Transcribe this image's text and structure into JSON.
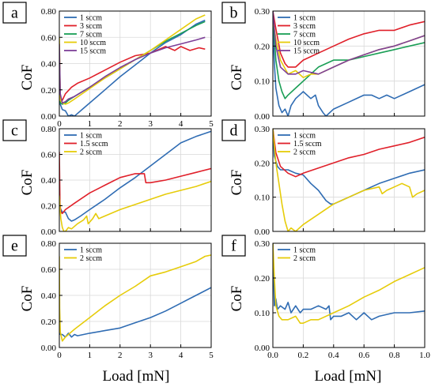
{
  "figure": {
    "y_label": "CoF",
    "x_label": "Load [mN]"
  },
  "colors": {
    "blue": "#2f6cb3",
    "red": "#e0202a",
    "green": "#1a9e55",
    "yellow": "#e6cc0a",
    "purple": "#7d3f98"
  },
  "chart_data": [
    {
      "panel": "a",
      "type": "line",
      "xlim": [
        0,
        5
      ],
      "ylim": [
        0,
        0.8
      ],
      "xticks": [
        0,
        1,
        2,
        3,
        4,
        5
      ],
      "yticks": [
        0.0,
        0.2,
        0.4,
        0.6,
        0.8
      ],
      "xtick_labels": [
        "0",
        "1",
        "2",
        "3",
        "4",
        "5"
      ],
      "ytick_labels": [
        "0.00",
        "0.20",
        "0.40",
        "0.60",
        "0.80"
      ],
      "show_x_tick_labels": true,
      "show_xlabel": false,
      "grid": true,
      "legend": "top-left",
      "series": [
        {
          "name": "1 sccm",
          "color": "blue",
          "x": [
            0,
            0.03,
            0.1,
            0.2,
            0.3,
            0.4,
            0.5,
            0.6,
            0.8,
            1.0,
            1.5,
            2.0,
            2.5,
            3.0,
            3.5,
            4.0,
            4.5,
            4.8
          ],
          "y": [
            0.3,
            0.09,
            0.05,
            0.04,
            0.0,
            0.01,
            0.0,
            0.02,
            0.06,
            0.1,
            0.2,
            0.3,
            0.39,
            0.48,
            0.56,
            0.62,
            0.7,
            0.73
          ]
        },
        {
          "name": "3 sccm",
          "color": "red",
          "x": [
            0,
            0.03,
            0.1,
            0.2,
            0.4,
            0.6,
            1.0,
            1.5,
            2.0,
            2.5,
            3.0,
            3.5,
            3.8,
            4.0,
            4.3,
            4.6,
            4.8
          ],
          "y": [
            0.5,
            0.14,
            0.12,
            0.17,
            0.22,
            0.25,
            0.29,
            0.35,
            0.41,
            0.46,
            0.48,
            0.53,
            0.5,
            0.53,
            0.5,
            0.52,
            0.51
          ]
        },
        {
          "name": "7 sccm",
          "color": "green",
          "x": [
            0,
            0.03,
            0.1,
            0.2,
            0.3,
            0.5,
            1.0,
            1.5,
            2.0,
            2.5,
            3.0,
            3.5,
            4.0,
            4.5,
            4.8
          ],
          "y": [
            0.4,
            0.1,
            0.09,
            0.1,
            0.12,
            0.15,
            0.22,
            0.29,
            0.36,
            0.43,
            0.5,
            0.57,
            0.63,
            0.69,
            0.72
          ]
        },
        {
          "name": "10 sccm",
          "color": "yellow",
          "x": [
            0,
            0.03,
            0.1,
            0.2,
            0.3,
            0.5,
            1.0,
            1.5,
            2.0,
            2.5,
            3.0,
            3.5,
            4.0,
            4.5,
            4.8
          ],
          "y": [
            0.6,
            0.12,
            0.1,
            0.09,
            0.1,
            0.13,
            0.21,
            0.29,
            0.36,
            0.43,
            0.5,
            0.58,
            0.66,
            0.74,
            0.77
          ]
        },
        {
          "name": "15 sccm",
          "color": "purple",
          "x": [
            0,
            0.03,
            0.1,
            0.2,
            0.3,
            0.5,
            1.0,
            1.5,
            2.0,
            2.5,
            3.0,
            3.5,
            4.0,
            4.5,
            4.8
          ],
          "y": [
            0.55,
            0.17,
            0.1,
            0.11,
            0.13,
            0.15,
            0.22,
            0.3,
            0.37,
            0.43,
            0.48,
            0.52,
            0.55,
            0.58,
            0.6
          ]
        }
      ]
    },
    {
      "panel": "b",
      "type": "line",
      "xlim": [
        0,
        1
      ],
      "ylim": [
        0,
        0.3
      ],
      "xticks": [
        0,
        0.2,
        0.4,
        0.6,
        0.8,
        1.0
      ],
      "yticks": [
        0.0,
        0.1,
        0.2,
        0.3
      ],
      "xtick_labels": [
        "0.0",
        "0.2",
        "0.4",
        "0.6",
        "0.8",
        "1.0"
      ],
      "ytick_labels": [
        "0.00",
        "0.10",
        "0.20",
        "0.30"
      ],
      "show_x_tick_labels": false,
      "show_xlabel": false,
      "grid": true,
      "legend": "top-left",
      "series": [
        {
          "name": "1 sccm",
          "color": "blue",
          "x": [
            0,
            0.01,
            0.02,
            0.04,
            0.06,
            0.08,
            0.1,
            0.12,
            0.15,
            0.2,
            0.25,
            0.28,
            0.3,
            0.33,
            0.35,
            0.4,
            0.5,
            0.6,
            0.65,
            0.7,
            0.75,
            0.8,
            0.9,
            1.0
          ],
          "y": [
            0.26,
            0.15,
            0.08,
            0.03,
            0.01,
            0.02,
            0.0,
            0.03,
            0.05,
            0.07,
            0.05,
            0.06,
            0.03,
            0.01,
            0.0,
            0.02,
            0.04,
            0.06,
            0.06,
            0.05,
            0.06,
            0.05,
            0.07,
            0.09
          ]
        },
        {
          "name": "3 sccm",
          "color": "red",
          "x": [
            0,
            0.02,
            0.05,
            0.08,
            0.1,
            0.15,
            0.2,
            0.3,
            0.4,
            0.5,
            0.6,
            0.7,
            0.8,
            0.9,
            1.0
          ],
          "y": [
            0.3,
            0.25,
            0.18,
            0.15,
            0.14,
            0.14,
            0.16,
            0.18,
            0.2,
            0.22,
            0.235,
            0.245,
            0.245,
            0.26,
            0.27
          ]
        },
        {
          "name": "7 sccm",
          "color": "green",
          "x": [
            0,
            0.02,
            0.04,
            0.06,
            0.08,
            0.1,
            0.15,
            0.2,
            0.25,
            0.3,
            0.4,
            0.45,
            0.5,
            0.6,
            0.7,
            0.8,
            0.9,
            1.0
          ],
          "y": [
            0.29,
            0.16,
            0.1,
            0.07,
            0.05,
            0.06,
            0.08,
            0.1,
            0.12,
            0.14,
            0.16,
            0.16,
            0.16,
            0.17,
            0.18,
            0.19,
            0.2,
            0.21
          ]
        },
        {
          "name": "10 sccm",
          "color": "yellow",
          "x": [
            0,
            0.02,
            0.05,
            0.1,
            0.15,
            0.2,
            0.25,
            0.3,
            0.4,
            0.5,
            0.6,
            0.7,
            0.8,
            0.9,
            1.0
          ],
          "y": [
            0.28,
            0.22,
            0.16,
            0.12,
            0.13,
            0.11,
            0.12,
            0.12,
            0.14,
            0.16,
            0.175,
            0.19,
            0.2,
            0.215,
            0.23
          ]
        },
        {
          "name": "15 sccm",
          "color": "purple",
          "x": [
            0,
            0.02,
            0.05,
            0.1,
            0.15,
            0.2,
            0.3,
            0.4,
            0.5,
            0.6,
            0.7,
            0.8,
            0.9,
            1.0
          ],
          "y": [
            0.3,
            0.2,
            0.14,
            0.12,
            0.12,
            0.13,
            0.12,
            0.14,
            0.16,
            0.175,
            0.19,
            0.2,
            0.215,
            0.23
          ]
        }
      ]
    },
    {
      "panel": "c",
      "type": "line",
      "xlim": [
        0,
        5
      ],
      "ylim": [
        0,
        0.8
      ],
      "xticks": [
        0,
        1,
        2,
        3,
        4,
        5
      ],
      "yticks": [
        0.0,
        0.2,
        0.4,
        0.6,
        0.8
      ],
      "xtick_labels": [
        "0",
        "1",
        "2",
        "3",
        "4",
        "5"
      ],
      "ytick_labels": [
        "0.00",
        "0.20",
        "0.40",
        "0.60",
        "0.80"
      ],
      "show_x_tick_labels": false,
      "show_xlabel": false,
      "grid": true,
      "legend": "top-left",
      "series": [
        {
          "name": "1 sccm",
          "color": "blue",
          "x": [
            0,
            0.03,
            0.1,
            0.2,
            0.3,
            0.4,
            0.5,
            0.7,
            1.0,
            1.5,
            2.0,
            2.5,
            3.0,
            3.5,
            4.0,
            4.5,
            5.0
          ],
          "y": [
            0.26,
            0.18,
            0.15,
            0.15,
            0.1,
            0.08,
            0.09,
            0.12,
            0.17,
            0.25,
            0.34,
            0.42,
            0.51,
            0.6,
            0.69,
            0.74,
            0.78
          ]
        },
        {
          "name": "1.5 sccm",
          "color": "red",
          "x": [
            0,
            0.02,
            0.05,
            0.1,
            0.2,
            0.5,
            1.0,
            1.5,
            2.0,
            2.5,
            2.8,
            2.85,
            3.0,
            3.5,
            4.0,
            4.5,
            5.0
          ],
          "y": [
            0.62,
            0.22,
            0.15,
            0.14,
            0.17,
            0.22,
            0.3,
            0.36,
            0.42,
            0.45,
            0.45,
            0.38,
            0.38,
            0.4,
            0.43,
            0.46,
            0.49
          ]
        },
        {
          "name": "2 sccm",
          "color": "yellow",
          "x": [
            0,
            0.02,
            0.05,
            0.1,
            0.15,
            0.2,
            0.3,
            0.4,
            0.6,
            0.8,
            0.9,
            0.95,
            1.1,
            1.2,
            1.3,
            1.5,
            2.0,
            2.5,
            3.0,
            3.5,
            4.0,
            4.5,
            5.0
          ],
          "y": [
            0.28,
            0.2,
            0.1,
            0.03,
            0.0,
            0.0,
            0.03,
            0.02,
            0.06,
            0.09,
            0.12,
            0.06,
            0.1,
            0.14,
            0.1,
            0.12,
            0.17,
            0.21,
            0.25,
            0.29,
            0.32,
            0.35,
            0.39
          ]
        }
      ]
    },
    {
      "panel": "d",
      "type": "line",
      "xlim": [
        0,
        1
      ],
      "ylim": [
        0,
        0.3
      ],
      "xticks": [
        0,
        0.2,
        0.4,
        0.6,
        0.8,
        1.0
      ],
      "yticks": [
        0.0,
        0.1,
        0.2,
        0.3
      ],
      "xtick_labels": [
        "0.0",
        "0.2",
        "0.4",
        "0.6",
        "0.8",
        "1.0"
      ],
      "ytick_labels": [
        "0.00",
        "0.10",
        "0.20",
        "0.30"
      ],
      "show_x_tick_labels": false,
      "show_xlabel": false,
      "grid": true,
      "legend": "top-left",
      "series": [
        {
          "name": "1 sccm",
          "color": "blue",
          "x": [
            0,
            0.01,
            0.03,
            0.05,
            0.1,
            0.15,
            0.2,
            0.25,
            0.3,
            0.35,
            0.38,
            0.4,
            0.45,
            0.5,
            0.6,
            0.7,
            0.8,
            0.9,
            1.0
          ],
          "y": [
            0.3,
            0.22,
            0.19,
            0.18,
            0.18,
            0.17,
            0.165,
            0.14,
            0.12,
            0.09,
            0.08,
            0.08,
            0.09,
            0.1,
            0.12,
            0.14,
            0.155,
            0.17,
            0.18
          ]
        },
        {
          "name": "1.5 sccm",
          "color": "red",
          "x": [
            0,
            0.02,
            0.05,
            0.1,
            0.15,
            0.2,
            0.3,
            0.4,
            0.5,
            0.6,
            0.7,
            0.8,
            0.9,
            1.0
          ],
          "y": [
            0.3,
            0.23,
            0.19,
            0.17,
            0.16,
            0.17,
            0.185,
            0.2,
            0.215,
            0.225,
            0.24,
            0.25,
            0.26,
            0.275
          ]
        },
        {
          "name": "2 sccm",
          "color": "yellow",
          "x": [
            0,
            0.01,
            0.02,
            0.04,
            0.06,
            0.08,
            0.1,
            0.12,
            0.15,
            0.2,
            0.3,
            0.4,
            0.5,
            0.6,
            0.7,
            0.72,
            0.75,
            0.8,
            0.85,
            0.9,
            0.92,
            0.95,
            1.0
          ],
          "y": [
            0.3,
            0.25,
            0.2,
            0.14,
            0.08,
            0.03,
            0.0,
            0.01,
            0.0,
            0.02,
            0.05,
            0.08,
            0.1,
            0.12,
            0.13,
            0.11,
            0.12,
            0.13,
            0.14,
            0.13,
            0.1,
            0.11,
            0.12
          ]
        }
      ]
    },
    {
      "panel": "e",
      "type": "line",
      "xlim": [
        0,
        5
      ],
      "ylim": [
        0,
        0.8
      ],
      "xticks": [
        0,
        1,
        2,
        3,
        4,
        5
      ],
      "yticks": [
        0.0,
        0.2,
        0.4,
        0.6,
        0.8
      ],
      "xtick_labels": [
        "0",
        "1",
        "2",
        "3",
        "4",
        "5"
      ],
      "ytick_labels": [
        "0.00",
        "0.20",
        "0.40",
        "0.60",
        "0.80"
      ],
      "show_x_tick_labels": true,
      "show_xlabel": true,
      "grid": true,
      "legend": "top-left",
      "series": [
        {
          "name": "1 sccm",
          "color": "blue",
          "x": [
            0,
            0.03,
            0.1,
            0.2,
            0.3,
            0.4,
            0.5,
            0.6,
            0.8,
            1.0,
            1.5,
            2.0,
            2.5,
            3.0,
            3.5,
            4.0,
            4.5,
            5.0
          ],
          "y": [
            0.12,
            0.1,
            0.1,
            0.08,
            0.11,
            0.08,
            0.1,
            0.09,
            0.1,
            0.11,
            0.13,
            0.15,
            0.19,
            0.23,
            0.28,
            0.34,
            0.4,
            0.46
          ]
        },
        {
          "name": "2 sccm",
          "color": "yellow",
          "x": [
            0,
            0.01,
            0.03,
            0.1,
            0.2,
            0.3,
            0.5,
            1.0,
            1.5,
            2.0,
            2.5,
            3.0,
            3.5,
            4.0,
            4.5,
            4.8,
            5.0
          ],
          "y": [
            0.7,
            0.3,
            0.12,
            0.05,
            0.08,
            0.1,
            0.14,
            0.23,
            0.32,
            0.4,
            0.47,
            0.55,
            0.58,
            0.62,
            0.66,
            0.7,
            0.71
          ]
        }
      ]
    },
    {
      "panel": "f",
      "type": "line",
      "xlim": [
        0,
        1
      ],
      "ylim": [
        0,
        0.3
      ],
      "xticks": [
        0,
        0.2,
        0.4,
        0.6,
        0.8,
        1.0
      ],
      "yticks": [
        0.0,
        0.1,
        0.2,
        0.3
      ],
      "xtick_labels": [
        "0.0",
        "0.2",
        "0.4",
        "0.6",
        "0.8",
        "1.0"
      ],
      "ytick_labels": [
        "0.00",
        "0.10",
        "0.20",
        "0.30"
      ],
      "show_x_tick_labels": true,
      "show_xlabel": true,
      "grid": true,
      "legend": "top-left",
      "series": [
        {
          "name": "1 sccm",
          "color": "blue",
          "x": [
            0,
            0.01,
            0.02,
            0.03,
            0.05,
            0.08,
            0.1,
            0.12,
            0.15,
            0.18,
            0.2,
            0.25,
            0.3,
            0.35,
            0.37,
            0.38,
            0.4,
            0.45,
            0.5,
            0.55,
            0.6,
            0.65,
            0.7,
            0.8,
            0.9,
            1.0
          ],
          "y": [
            0.3,
            0.12,
            0.14,
            0.11,
            0.12,
            0.11,
            0.13,
            0.1,
            0.12,
            0.1,
            0.11,
            0.11,
            0.12,
            0.11,
            0.12,
            0.08,
            0.09,
            0.09,
            0.1,
            0.08,
            0.1,
            0.08,
            0.09,
            0.1,
            0.1,
            0.105
          ]
        },
        {
          "name": "2 sccm",
          "color": "yellow",
          "x": [
            0,
            0.01,
            0.02,
            0.04,
            0.06,
            0.1,
            0.15,
            0.18,
            0.2,
            0.25,
            0.3,
            0.4,
            0.5,
            0.6,
            0.7,
            0.8,
            0.9,
            1.0
          ],
          "y": [
            0.3,
            0.2,
            0.12,
            0.09,
            0.08,
            0.08,
            0.09,
            0.07,
            0.07,
            0.08,
            0.08,
            0.1,
            0.12,
            0.145,
            0.165,
            0.19,
            0.21,
            0.23
          ]
        }
      ]
    }
  ]
}
